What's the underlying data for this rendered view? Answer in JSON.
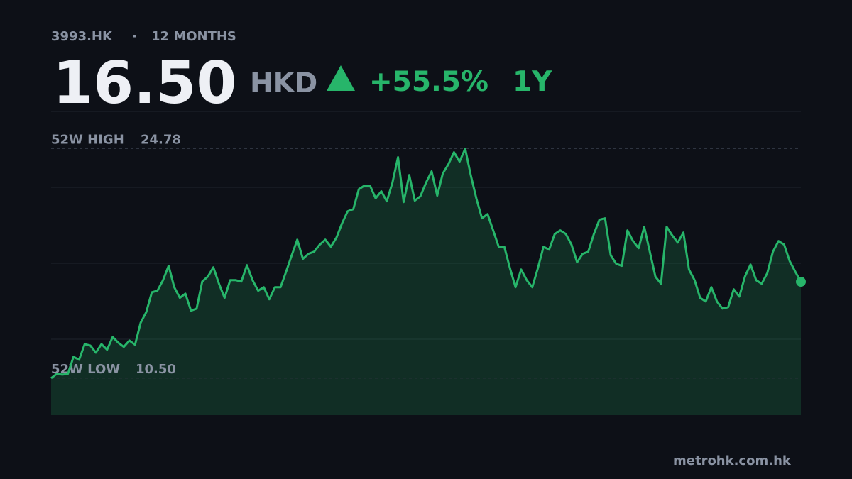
{
  "header": {
    "ticker": "3993.HK",
    "separator": "·",
    "period": "12 MONTHS",
    "price": "16.50",
    "currency": "HKD",
    "change": "+55.5%",
    "change_period": "1Y"
  },
  "chart_data": {
    "type": "area",
    "values": [
      10.5,
      10.77,
      10.72,
      10.77,
      11.83,
      11.65,
      12.62,
      12.53,
      12.09,
      12.62,
      12.27,
      13.06,
      12.71,
      12.45,
      12.84,
      12.58,
      13.95,
      14.61,
      15.85,
      15.94,
      16.6,
      17.49,
      16.16,
      15.5,
      15.76,
      14.7,
      14.83,
      16.51,
      16.82,
      17.4,
      16.38,
      15.5,
      16.6,
      16.6,
      16.51,
      17.53,
      16.6,
      15.94,
      16.16,
      15.41,
      16.16,
      16.16,
      17.13,
      18.15,
      19.12,
      17.93,
      18.24,
      18.37,
      18.81,
      19.12,
      18.68,
      19.25,
      20.14,
      20.89,
      21.02,
      22.26,
      22.48,
      22.48,
      21.69,
      22.13,
      21.51,
      22.66,
      24.25,
      21.46,
      23.14,
      21.55,
      21.82,
      22.66,
      23.37,
      21.86,
      23.23,
      23.81,
      24.56,
      23.98,
      24.78,
      23.14,
      21.69,
      20.45,
      20.71,
      19.7,
      18.68,
      18.68,
      17.35,
      16.16,
      17.26,
      16.6,
      16.16,
      17.35,
      18.68,
      18.5,
      19.47,
      19.7,
      19.47,
      18.81,
      17.71,
      18.24,
      18.37,
      19.47,
      20.36,
      20.45,
      18.15,
      17.62,
      17.49,
      19.7,
      19.03,
      18.59,
      19.92,
      18.37,
      16.82,
      16.38,
      19.92,
      19.39,
      18.94,
      19.56,
      17.26,
      16.6,
      15.5,
      15.27,
      16.16,
      15.27,
      14.83,
      14.92,
      16.03,
      15.58,
      16.82,
      17.57,
      16.6,
      16.38,
      17.04,
      18.37,
      19.03,
      18.81,
      17.79,
      17.13,
      16.5
    ],
    "color": "#27b56a",
    "ylim": [
      8.2,
      27.1
    ],
    "high": {
      "label": "52W HIGH",
      "value": 24.78
    },
    "low": {
      "label": "52W LOW",
      "value": 10.5,
      "value_label": "10.50"
    }
  },
  "footer": {
    "source": "metrohk.com.hk"
  }
}
